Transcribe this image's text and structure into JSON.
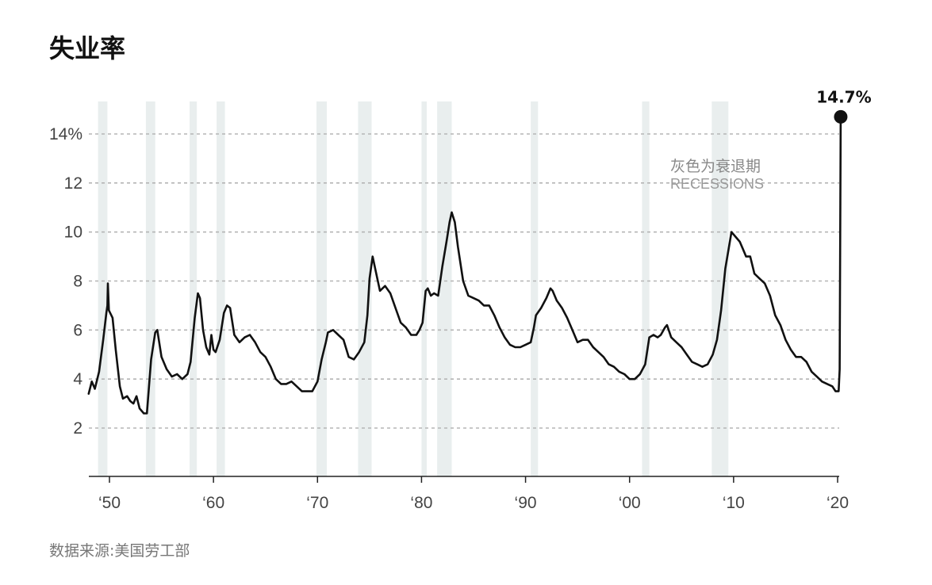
{
  "chart_data": {
    "type": "line",
    "title": "失业率",
    "source": "数据来源:美国劳工部",
    "ylim": [
      0,
      15.5
    ],
    "xlim": [
      1948,
      2020.3
    ],
    "y_ticks": [
      {
        "value": 14,
        "label": "14%"
      },
      {
        "value": 12,
        "label": "12"
      },
      {
        "value": 10,
        "label": "10"
      },
      {
        "value": 8,
        "label": "8"
      },
      {
        "value": 6,
        "label": "6"
      },
      {
        "value": 4,
        "label": "4"
      },
      {
        "value": 2,
        "label": "2"
      }
    ],
    "x_ticks": [
      {
        "value": 1950,
        "label": "‘50"
      },
      {
        "value": 1960,
        "label": "‘60"
      },
      {
        "value": 1970,
        "label": "‘70"
      },
      {
        "value": 1980,
        "label": "‘80"
      },
      {
        "value": 1990,
        "label": "‘90"
      },
      {
        "value": 2000,
        "label": "‘00"
      },
      {
        "value": 2010,
        "label": "‘10"
      },
      {
        "value": 2020,
        "label": "‘20"
      }
    ],
    "grid": "horizontal dashed",
    "recessions": [
      [
        1948.9,
        1949.8
      ],
      [
        1953.5,
        1954.4
      ],
      [
        1957.7,
        1958.4
      ],
      [
        1960.3,
        1961.1
      ],
      [
        1969.9,
        1970.9
      ],
      [
        1973.9,
        1975.2
      ],
      [
        1980.0,
        1980.5
      ],
      [
        1981.5,
        1982.9
      ],
      [
        1990.5,
        1991.2
      ],
      [
        2001.2,
        2001.9
      ],
      [
        2007.9,
        2009.5
      ]
    ],
    "recession_annotation": {
      "cn": "灰色为衰退期",
      "en": "RECESSIONS"
    },
    "peak": {
      "x": 2020.3,
      "y": 14.7,
      "label": "14.7%"
    },
    "series": [
      {
        "values": [
          [
            1948.0,
            3.4
          ],
          [
            1948.3,
            3.9
          ],
          [
            1948.6,
            3.6
          ],
          [
            1949.0,
            4.3
          ],
          [
            1949.4,
            5.6
          ],
          [
            1949.7,
            6.7
          ],
          [
            1949.8,
            7.0
          ],
          [
            1949.85,
            7.9
          ],
          [
            1949.95,
            6.8
          ],
          [
            1950.3,
            6.5
          ],
          [
            1950.6,
            5.2
          ],
          [
            1951.0,
            3.7
          ],
          [
            1951.3,
            3.2
          ],
          [
            1951.7,
            3.3
          ],
          [
            1952.0,
            3.1
          ],
          [
            1952.3,
            3.0
          ],
          [
            1952.6,
            3.3
          ],
          [
            1952.9,
            2.8
          ],
          [
            1953.3,
            2.6
          ],
          [
            1953.6,
            2.6
          ],
          [
            1954.0,
            4.8
          ],
          [
            1954.4,
            5.9
          ],
          [
            1954.6,
            6.0
          ],
          [
            1955.0,
            4.9
          ],
          [
            1955.5,
            4.4
          ],
          [
            1956.0,
            4.1
          ],
          [
            1956.5,
            4.2
          ],
          [
            1957.0,
            4.0
          ],
          [
            1957.5,
            4.2
          ],
          [
            1957.8,
            4.7
          ],
          [
            1958.2,
            6.5
          ],
          [
            1958.5,
            7.5
          ],
          [
            1958.7,
            7.3
          ],
          [
            1959.0,
            6.0
          ],
          [
            1959.3,
            5.3
          ],
          [
            1959.6,
            5.0
          ],
          [
            1959.8,
            5.8
          ],
          [
            1960.0,
            5.2
          ],
          [
            1960.2,
            5.1
          ],
          [
            1960.6,
            5.6
          ],
          [
            1961.0,
            6.7
          ],
          [
            1961.3,
            7.0
          ],
          [
            1961.6,
            6.9
          ],
          [
            1962.0,
            5.8
          ],
          [
            1962.5,
            5.5
          ],
          [
            1963.0,
            5.7
          ],
          [
            1963.5,
            5.8
          ],
          [
            1964.0,
            5.5
          ],
          [
            1964.5,
            5.1
          ],
          [
            1965.0,
            4.9
          ],
          [
            1965.5,
            4.5
          ],
          [
            1966.0,
            4.0
          ],
          [
            1966.5,
            3.8
          ],
          [
            1967.0,
            3.8
          ],
          [
            1967.5,
            3.9
          ],
          [
            1968.0,
            3.7
          ],
          [
            1968.5,
            3.5
          ],
          [
            1969.0,
            3.5
          ],
          [
            1969.5,
            3.5
          ],
          [
            1970.0,
            3.9
          ],
          [
            1970.4,
            4.8
          ],
          [
            1970.8,
            5.5
          ],
          [
            1971.0,
            5.9
          ],
          [
            1971.5,
            6.0
          ],
          [
            1972.0,
            5.8
          ],
          [
            1972.5,
            5.6
          ],
          [
            1973.0,
            4.9
          ],
          [
            1973.5,
            4.8
          ],
          [
            1974.0,
            5.1
          ],
          [
            1974.5,
            5.5
          ],
          [
            1974.8,
            6.6
          ],
          [
            1975.0,
            8.1
          ],
          [
            1975.3,
            9.0
          ],
          [
            1975.6,
            8.4
          ],
          [
            1976.0,
            7.6
          ],
          [
            1976.5,
            7.8
          ],
          [
            1977.0,
            7.5
          ],
          [
            1977.5,
            6.9
          ],
          [
            1978.0,
            6.3
          ],
          [
            1978.5,
            6.1
          ],
          [
            1979.0,
            5.8
          ],
          [
            1979.5,
            5.8
          ],
          [
            1979.8,
            6.0
          ],
          [
            1980.1,
            6.3
          ],
          [
            1980.4,
            7.6
          ],
          [
            1980.6,
            7.7
          ],
          [
            1980.9,
            7.4
          ],
          [
            1981.2,
            7.5
          ],
          [
            1981.6,
            7.4
          ],
          [
            1982.0,
            8.6
          ],
          [
            1982.4,
            9.6
          ],
          [
            1982.7,
            10.4
          ],
          [
            1982.9,
            10.8
          ],
          [
            1983.2,
            10.4
          ],
          [
            1983.5,
            9.4
          ],
          [
            1984.0,
            8.0
          ],
          [
            1984.5,
            7.4
          ],
          [
            1985.0,
            7.3
          ],
          [
            1985.5,
            7.2
          ],
          [
            1986.0,
            7.0
          ],
          [
            1986.5,
            7.0
          ],
          [
            1987.0,
            6.6
          ],
          [
            1987.5,
            6.1
          ],
          [
            1988.0,
            5.7
          ],
          [
            1988.5,
            5.4
          ],
          [
            1989.0,
            5.3
          ],
          [
            1989.5,
            5.3
          ],
          [
            1990.0,
            5.4
          ],
          [
            1990.5,
            5.5
          ],
          [
            1990.8,
            6.1
          ],
          [
            1991.0,
            6.6
          ],
          [
            1991.5,
            6.9
          ],
          [
            1992.0,
            7.3
          ],
          [
            1992.4,
            7.7
          ],
          [
            1992.6,
            7.6
          ],
          [
            1993.0,
            7.2
          ],
          [
            1993.5,
            6.9
          ],
          [
            1994.0,
            6.5
          ],
          [
            1994.5,
            6.0
          ],
          [
            1995.0,
            5.5
          ],
          [
            1995.5,
            5.6
          ],
          [
            1996.0,
            5.6
          ],
          [
            1996.5,
            5.3
          ],
          [
            1997.0,
            5.1
          ],
          [
            1997.5,
            4.9
          ],
          [
            1998.0,
            4.6
          ],
          [
            1998.5,
            4.5
          ],
          [
            1999.0,
            4.3
          ],
          [
            1999.5,
            4.2
          ],
          [
            2000.0,
            4.0
          ],
          [
            2000.5,
            4.0
          ],
          [
            2001.0,
            4.2
          ],
          [
            2001.5,
            4.6
          ],
          [
            2001.9,
            5.7
          ],
          [
            2002.3,
            5.8
          ],
          [
            2002.7,
            5.7
          ],
          [
            2003.0,
            5.8
          ],
          [
            2003.4,
            6.1
          ],
          [
            2003.6,
            6.2
          ],
          [
            2004.0,
            5.7
          ],
          [
            2004.5,
            5.5
          ],
          [
            2005.0,
            5.3
          ],
          [
            2005.5,
            5.0
          ],
          [
            2006.0,
            4.7
          ],
          [
            2006.5,
            4.6
          ],
          [
            2007.0,
            4.5
          ],
          [
            2007.5,
            4.6
          ],
          [
            2008.0,
            5.0
          ],
          [
            2008.4,
            5.6
          ],
          [
            2008.8,
            6.8
          ],
          [
            2009.2,
            8.5
          ],
          [
            2009.6,
            9.5
          ],
          [
            2009.8,
            10.0
          ],
          [
            2010.2,
            9.8
          ],
          [
            2010.6,
            9.6
          ],
          [
            2010.9,
            9.3
          ],
          [
            2011.2,
            9.0
          ],
          [
            2011.6,
            9.0
          ],
          [
            2012.0,
            8.3
          ],
          [
            2012.5,
            8.1
          ],
          [
            2013.0,
            7.9
          ],
          [
            2013.5,
            7.4
          ],
          [
            2014.0,
            6.6
          ],
          [
            2014.5,
            6.2
          ],
          [
            2015.0,
            5.6
          ],
          [
            2015.5,
            5.2
          ],
          [
            2016.0,
            4.9
          ],
          [
            2016.5,
            4.9
          ],
          [
            2017.0,
            4.7
          ],
          [
            2017.5,
            4.3
          ],
          [
            2018.0,
            4.1
          ],
          [
            2018.5,
            3.9
          ],
          [
            2019.0,
            3.8
          ],
          [
            2019.5,
            3.7
          ],
          [
            2019.8,
            3.5
          ],
          [
            2020.1,
            3.5
          ],
          [
            2020.2,
            4.4
          ],
          [
            2020.3,
            14.7
          ]
        ]
      }
    ]
  }
}
